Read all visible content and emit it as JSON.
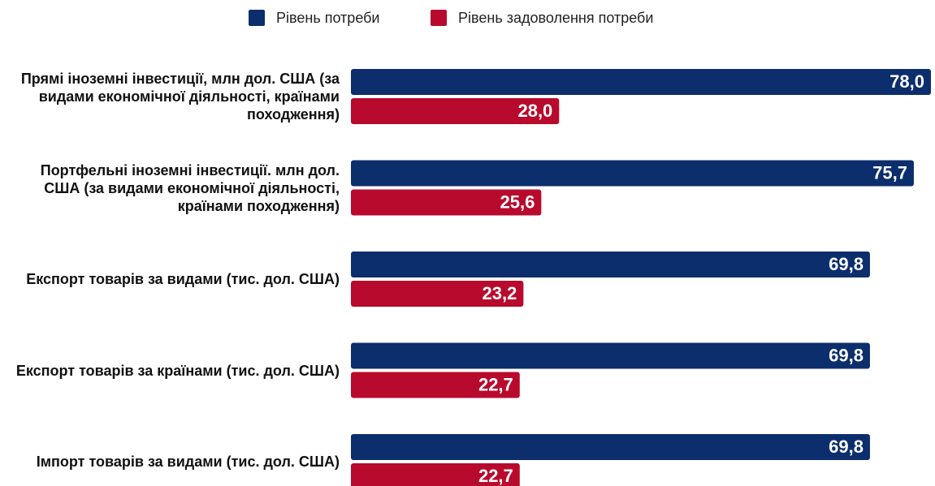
{
  "chart_data": {
    "type": "bar",
    "orientation": "horizontal",
    "categories": [
      "Прямі іноземні інвестиції, млн дол. США (за видами економічної діяльності, країнами походження)",
      "Портфельні іноземні інвестиції. млн дол. США (за видами економічної діяльності, країнами походження)",
      "Експорт товарів за видами (тис. дол. США)",
      "Експорт товарів за країнами (тис. дол. США)",
      "Імпорт товарів за видами (тис. дол. США)"
    ],
    "series": [
      {
        "name": "Рівень потреби",
        "color": "#0c2e6c",
        "values": [
          78.0,
          75.7,
          69.8,
          69.8,
          69.8
        ],
        "value_labels": [
          "78,0",
          "75,7",
          "69,8",
          "69,8",
          "69,8"
        ]
      },
      {
        "name": "Рівень задоволення потреби",
        "color": "#b80a2d",
        "values": [
          28.0,
          25.6,
          23.2,
          22.7,
          22.7
        ],
        "value_labels": [
          "28,0",
          "25,6",
          "23,2",
          "22,7",
          "22,7"
        ]
      }
    ],
    "legend": "top"
  }
}
